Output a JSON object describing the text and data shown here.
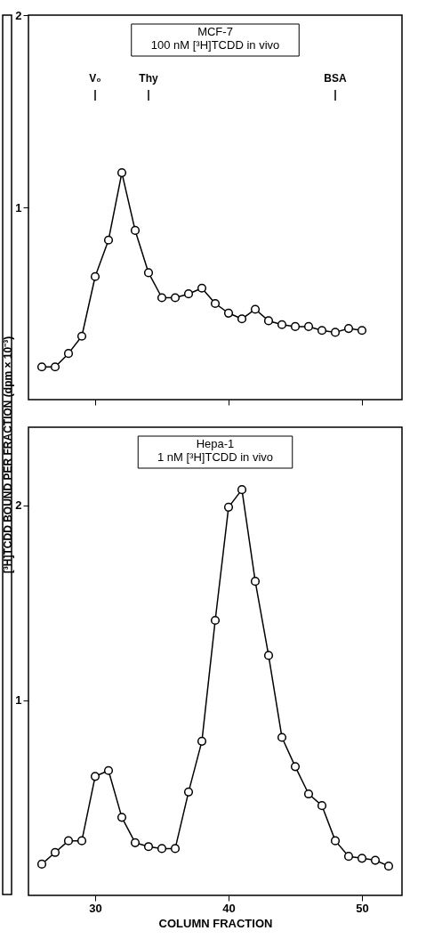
{
  "chart_data": [
    {
      "type": "line",
      "title": "MCF-7\n100 nM [³H]TCDD in vivo",
      "ylabel": "[³H]TCDD BOUND PER FRACTION (dpm × 10⁻³)",
      "x": [
        26,
        27,
        28,
        29,
        30,
        31,
        32,
        33,
        34,
        35,
        36,
        37,
        38,
        39,
        40,
        41,
        42,
        43,
        44,
        45,
        46,
        47,
        48,
        49,
        50
      ],
      "values": [
        0.17,
        0.17,
        0.24,
        0.33,
        0.64,
        0.83,
        1.18,
        0.88,
        0.66,
        0.53,
        0.53,
        0.55,
        0.58,
        0.5,
        0.45,
        0.42,
        0.47,
        0.41,
        0.39,
        0.38,
        0.38,
        0.36,
        0.35,
        0.37,
        0.36
      ],
      "color": "#000000",
      "marker": "circle",
      "line_style": "solid",
      "grid": false,
      "xlim": [
        25,
        53
      ],
      "xticks": [
        30,
        40,
        50
      ],
      "ylim": [
        0,
        2
      ],
      "yticks": [
        1,
        2
      ],
      "tick_labels": "y",
      "annotations": [
        {
          "text": "V₀",
          "x": 30
        },
        {
          "text": "Thy",
          "x": 34
        },
        {
          "text": "BSA",
          "x": 48
        }
      ]
    },
    {
      "type": "line",
      "title": "Hepa-1\n1 nM [³H]TCDD in vivo",
      "xlabel": "COLUMN FRACTION",
      "x": [
        26,
        27,
        28,
        29,
        30,
        31,
        32,
        33,
        34,
        35,
        36,
        37,
        38,
        39,
        40,
        41,
        42,
        43,
        44,
        45,
        46,
        47,
        48,
        49,
        50,
        51,
        52
      ],
      "values": [
        0.16,
        0.22,
        0.28,
        0.28,
        0.61,
        0.64,
        0.4,
        0.27,
        0.25,
        0.24,
        0.24,
        0.53,
        0.79,
        1.41,
        1.99,
        2.08,
        1.61,
        1.23,
        0.81,
        0.66,
        0.52,
        0.46,
        0.28,
        0.2,
        0.19,
        0.18,
        0.15
      ],
      "color": "#000000",
      "marker": "circle",
      "line_style": "solid",
      "grid": false,
      "xlim": [
        25,
        53
      ],
      "xticks": [
        30,
        40,
        50
      ],
      "ylim": [
        0,
        2.4
      ],
      "yticks": [
        1,
        2
      ]
    }
  ]
}
